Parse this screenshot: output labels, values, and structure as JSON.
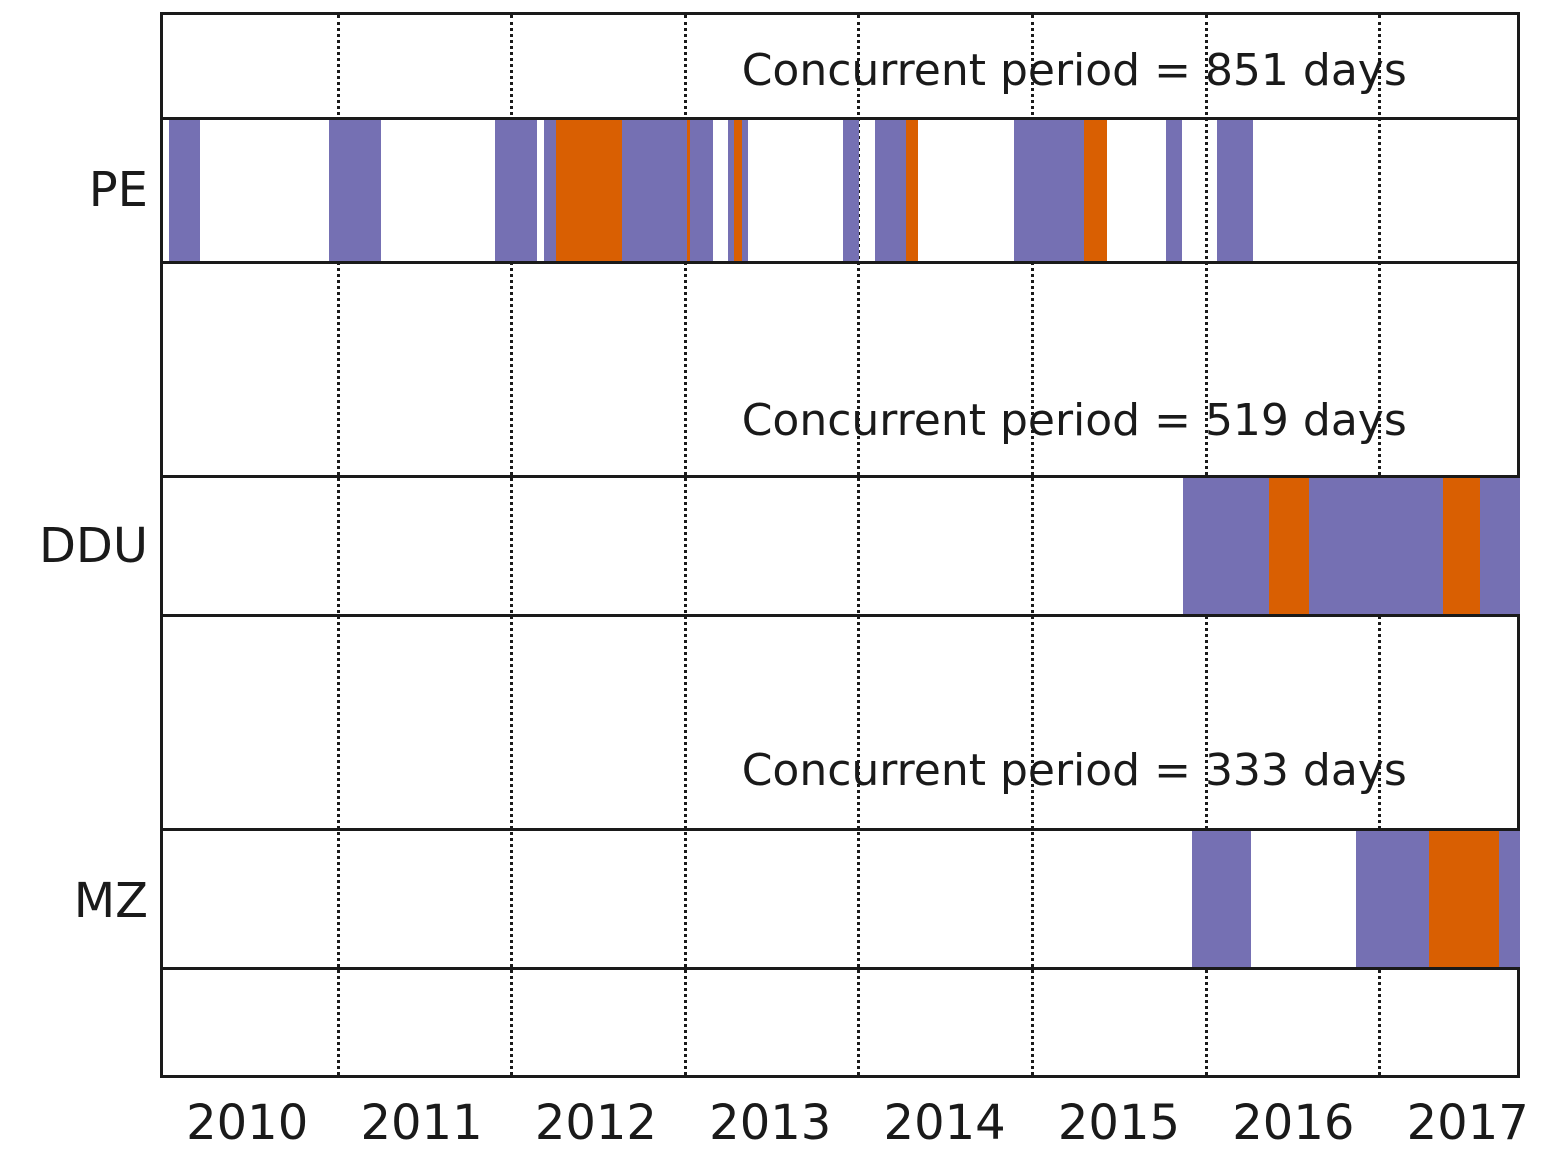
{
  "figure": {
    "background": "#ffffff",
    "frame_color": "#1a1a1a"
  },
  "chart_data": {
    "type": "bar",
    "subtype": "timeline-availability-intervals",
    "title": "",
    "xlabel": "",
    "ylabel": "",
    "x_axis": {
      "min": 2010.0,
      "max": 2017.8,
      "gridlines": [
        2011,
        2012,
        2013,
        2014,
        2015,
        2016,
        2017
      ],
      "ticks": [
        {
          "label": "2010",
          "x": 2010.5
        },
        {
          "label": "2011",
          "x": 2011.5
        },
        {
          "label": "2012",
          "x": 2012.5
        },
        {
          "label": "2013",
          "x": 2013.5
        },
        {
          "label": "2014",
          "x": 2014.5
        },
        {
          "label": "2015",
          "x": 2015.5
        },
        {
          "label": "2016",
          "x": 2016.5
        },
        {
          "label": "2017",
          "x": 2017.5
        }
      ]
    },
    "colors": {
      "purple": "#7570b3",
      "orange": "#d95f02"
    },
    "rows": [
      {
        "station": "PE",
        "annotation": "Concurrent period = 851 days",
        "concurrent_days": 851,
        "segments": [
          {
            "start": 2010.05,
            "end": 2010.23,
            "color": "purple"
          },
          {
            "start": 2010.97,
            "end": 2011.27,
            "color": "purple"
          },
          {
            "start": 2011.92,
            "end": 2012.16,
            "color": "purple"
          },
          {
            "start": 2012.2,
            "end": 2012.27,
            "color": "purple"
          },
          {
            "start": 2012.27,
            "end": 2012.65,
            "color": "orange"
          },
          {
            "start": 2012.65,
            "end": 2013.02,
            "color": "purple"
          },
          {
            "start": 2013.02,
            "end": 2013.04,
            "color": "orange"
          },
          {
            "start": 2013.04,
            "end": 2013.17,
            "color": "purple"
          },
          {
            "start": 2013.26,
            "end": 2013.29,
            "color": "purple"
          },
          {
            "start": 2013.29,
            "end": 2013.34,
            "color": "orange"
          },
          {
            "start": 2013.34,
            "end": 2013.37,
            "color": "purple"
          },
          {
            "start": 2013.92,
            "end": 2014.01,
            "color": "purple"
          },
          {
            "start": 2014.1,
            "end": 2014.28,
            "color": "purple"
          },
          {
            "start": 2014.28,
            "end": 2014.35,
            "color": "orange"
          },
          {
            "start": 2014.9,
            "end": 2015.3,
            "color": "purple"
          },
          {
            "start": 2015.3,
            "end": 2015.43,
            "color": "orange"
          },
          {
            "start": 2015.77,
            "end": 2015.86,
            "color": "purple"
          },
          {
            "start": 2016.06,
            "end": 2016.27,
            "color": "purple"
          }
        ]
      },
      {
        "station": "DDU",
        "annotation": "Concurrent period = 519 days",
        "concurrent_days": 519,
        "segments": [
          {
            "start": 2015.87,
            "end": 2016.36,
            "color": "purple"
          },
          {
            "start": 2016.36,
            "end": 2016.59,
            "color": "orange"
          },
          {
            "start": 2016.59,
            "end": 2017.36,
            "color": "purple"
          },
          {
            "start": 2017.36,
            "end": 2017.57,
            "color": "orange"
          },
          {
            "start": 2017.57,
            "end": 2017.8,
            "color": "purple"
          }
        ]
      },
      {
        "station": "MZ",
        "annotation": "Concurrent period = 333 days",
        "concurrent_days": 333,
        "segments": [
          {
            "start": 2015.92,
            "end": 2016.26,
            "color": "purple"
          },
          {
            "start": 2016.86,
            "end": 2017.28,
            "color": "purple"
          },
          {
            "start": 2017.28,
            "end": 2017.68,
            "color": "orange"
          },
          {
            "start": 2017.68,
            "end": 2017.8,
            "color": "purple"
          }
        ]
      }
    ]
  }
}
